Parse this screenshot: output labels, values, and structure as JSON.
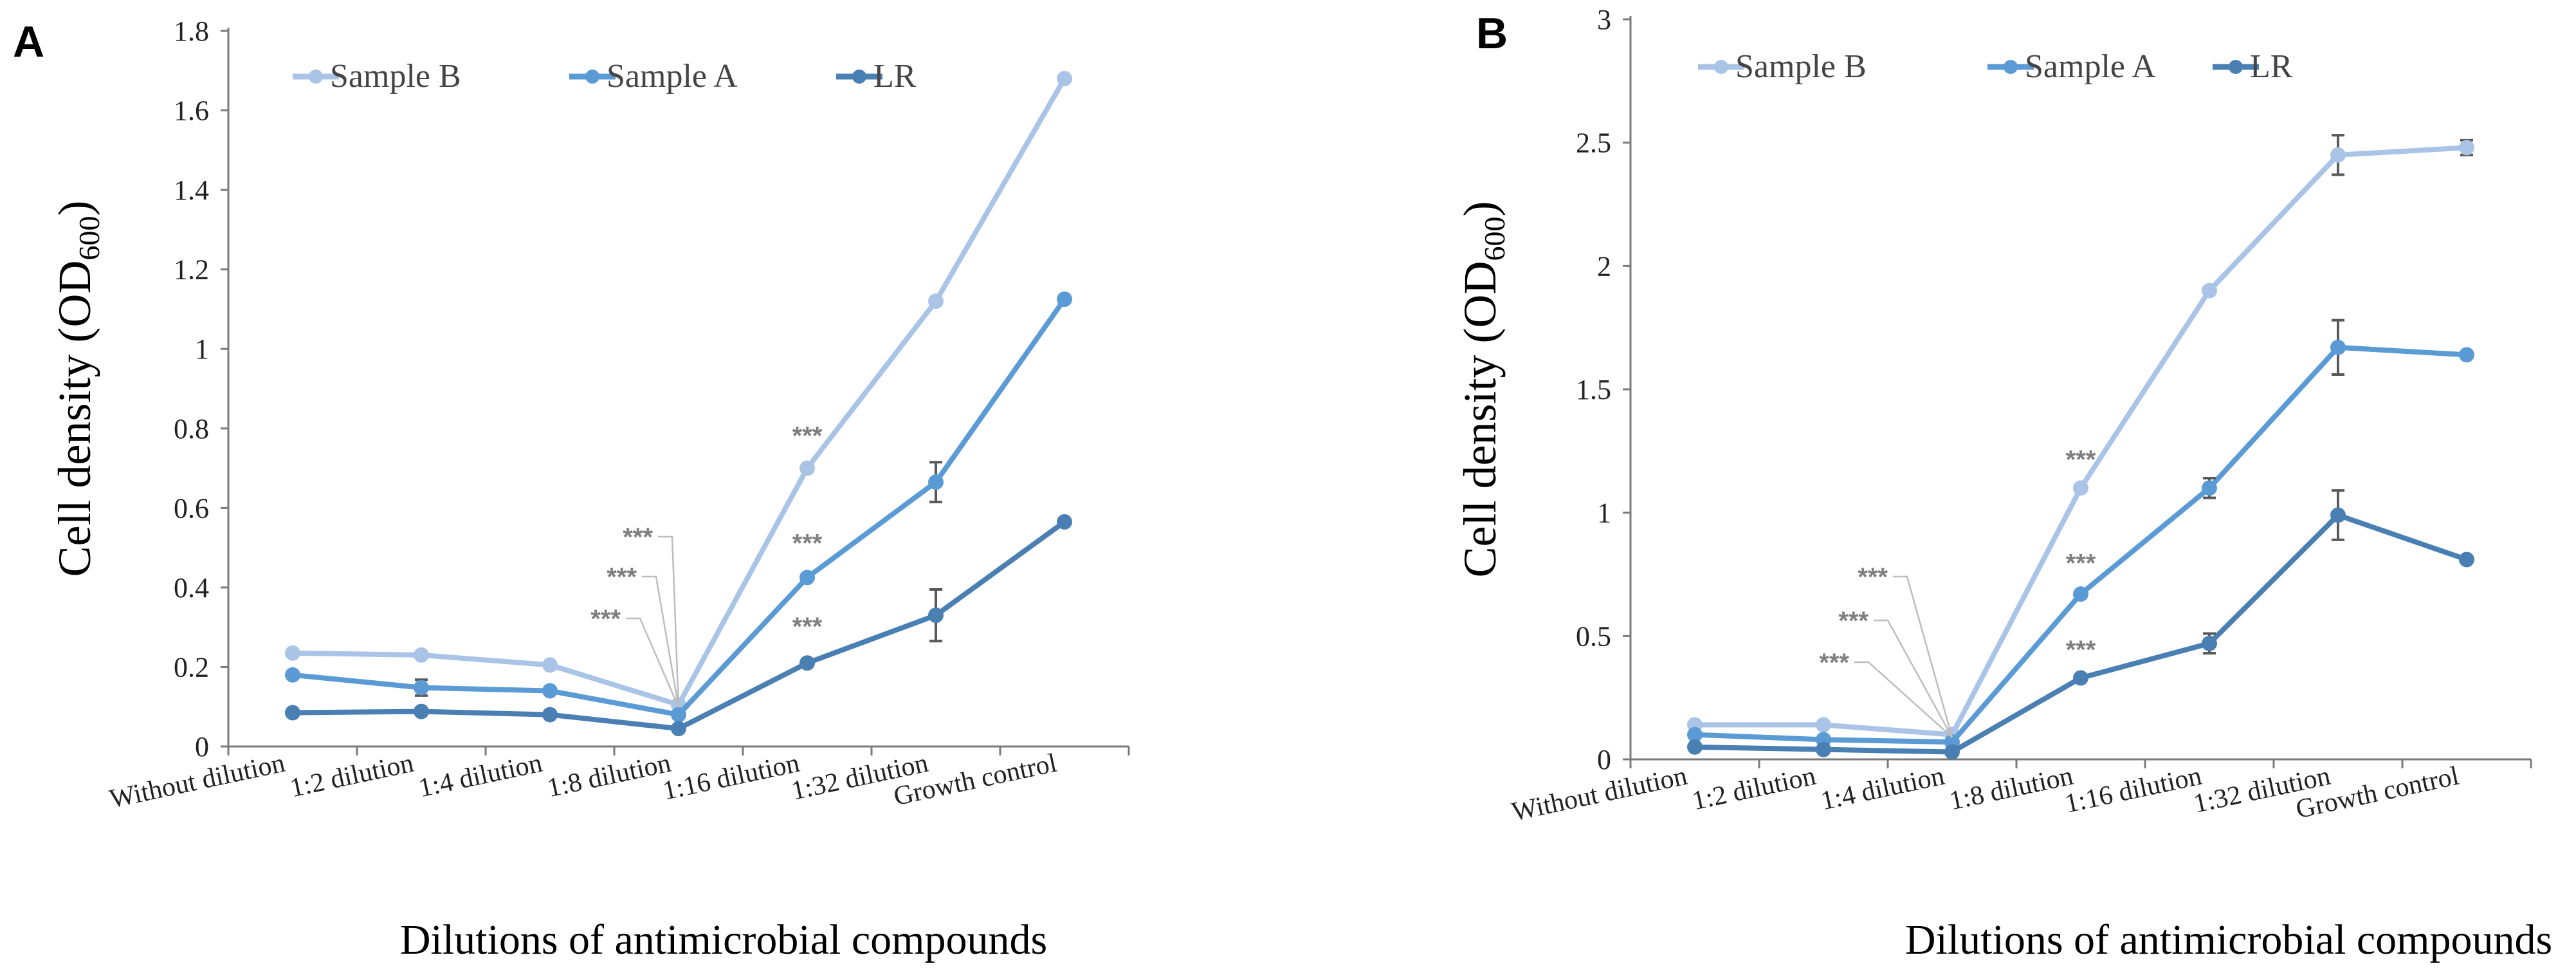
{
  "chart_data": [
    {
      "panel": "A",
      "type": "line",
      "title": "",
      "xlabel": "Dilutions of antimicrobial compounds",
      "ylabel_main": "Cell density (OD",
      "ylabel_sub": "600",
      "ylabel_close": ")",
      "ylim": [
        0,
        1.8
      ],
      "yticks": [
        0,
        0.2,
        0.4,
        0.6,
        0.8,
        1,
        1.2,
        1.4,
        1.6,
        1.8
      ],
      "ytick_labels": [
        "0",
        "0.2",
        "0.4",
        "0.6",
        "0.8",
        "1",
        "1.2",
        "1.4",
        "1.6",
        "1.8"
      ],
      "categories": [
        "Without dilution",
        "1:2 dilution",
        "1:4 dilution",
        "1:8 dilution",
        "1:16 dilution",
        "1:32 dilution",
        "Growth control"
      ],
      "legend_position": "top",
      "series": [
        {
          "name": "Sample B",
          "color": "#a9c4e6",
          "values": [
            0.235,
            0.23,
            0.205,
            0.105,
            0.7,
            1.12,
            1.68
          ],
          "errors": [
            0,
            0,
            0,
            0,
            0,
            0,
            0
          ]
        },
        {
          "name": "Sample A",
          "color": "#5b9bd5",
          "values": [
            0.18,
            0.148,
            0.14,
            0.08,
            0.425,
            0.665,
            1.125
          ],
          "errors": [
            0,
            0.02,
            0,
            0,
            0,
            0.05,
            0
          ]
        },
        {
          "name": "LR",
          "color": "#4a7fb3",
          "values": [
            0.085,
            0.088,
            0.08,
            0.045,
            0.21,
            0.33,
            0.565
          ],
          "errors": [
            0,
            0,
            0,
            0,
            0,
            0.065,
            0
          ]
        }
      ],
      "annotations": [
        {
          "text": "***",
          "category_index": 3,
          "stack_index": 0,
          "kind": "leader"
        },
        {
          "text": "***",
          "category_index": 3,
          "stack_index": 1,
          "kind": "leader"
        },
        {
          "text": "***",
          "category_index": 3,
          "stack_index": 2,
          "kind": "leader"
        },
        {
          "text": "***",
          "category_index": 4,
          "value": 0.76,
          "kind": "above"
        },
        {
          "text": "***",
          "category_index": 4,
          "value": 0.49,
          "kind": "above"
        },
        {
          "text": "***",
          "category_index": 4,
          "value": 0.28,
          "kind": "above"
        }
      ]
    },
    {
      "panel": "B",
      "type": "line",
      "title": "",
      "xlabel": "Dilutions of antimicrobial compounds",
      "ylabel_main": "Cell density (OD",
      "ylabel_sub": "600",
      "ylabel_close": ")",
      "ylim": [
        0,
        3
      ],
      "yticks": [
        0,
        0.5,
        1,
        1.5,
        2,
        2.5,
        3
      ],
      "ytick_labels": [
        "0",
        "0.5",
        "1",
        "1.5",
        "2",
        "2.5",
        "3"
      ],
      "categories": [
        "Without dilution",
        "1:2 dilution",
        "1:4 dilution",
        "1:8 dilution",
        "1:16 dilution",
        "1:32 dilution",
        "Growth control"
      ],
      "legend_position": "top",
      "series": [
        {
          "name": "Sample B",
          "color": "#a9c4e6",
          "values": [
            0.14,
            0.14,
            0.1,
            1.1,
            1.9,
            2.45,
            2.48
          ],
          "errors": [
            0,
            0,
            0,
            0,
            0,
            0.08,
            0.03
          ]
        },
        {
          "name": "Sample A",
          "color": "#5b9bd5",
          "values": [
            0.1,
            0.08,
            0.07,
            0.67,
            1.1,
            1.67,
            1.64
          ],
          "errors": [
            0,
            0,
            0,
            0,
            0.04,
            0.11,
            0
          ]
        },
        {
          "name": "LR",
          "color": "#4a7fb3",
          "values": [
            0.05,
            0.04,
            0.03,
            0.33,
            0.47,
            0.99,
            0.81
          ],
          "errors": [
            0,
            0,
            0,
            0,
            0.04,
            0.1,
            0
          ]
        }
      ],
      "annotations": [
        {
          "text": "***",
          "category_index": 2,
          "stack_index": 0,
          "kind": "leader"
        },
        {
          "text": "***",
          "category_index": 2,
          "stack_index": 1,
          "kind": "leader"
        },
        {
          "text": "***",
          "category_index": 2,
          "stack_index": 2,
          "kind": "leader"
        },
        {
          "text": "***",
          "category_index": 3,
          "value": 1.18,
          "kind": "above"
        },
        {
          "text": "***",
          "category_index": 3,
          "value": 0.76,
          "kind": "above"
        },
        {
          "text": "***",
          "category_index": 3,
          "value": 0.41,
          "kind": "above"
        }
      ]
    }
  ]
}
